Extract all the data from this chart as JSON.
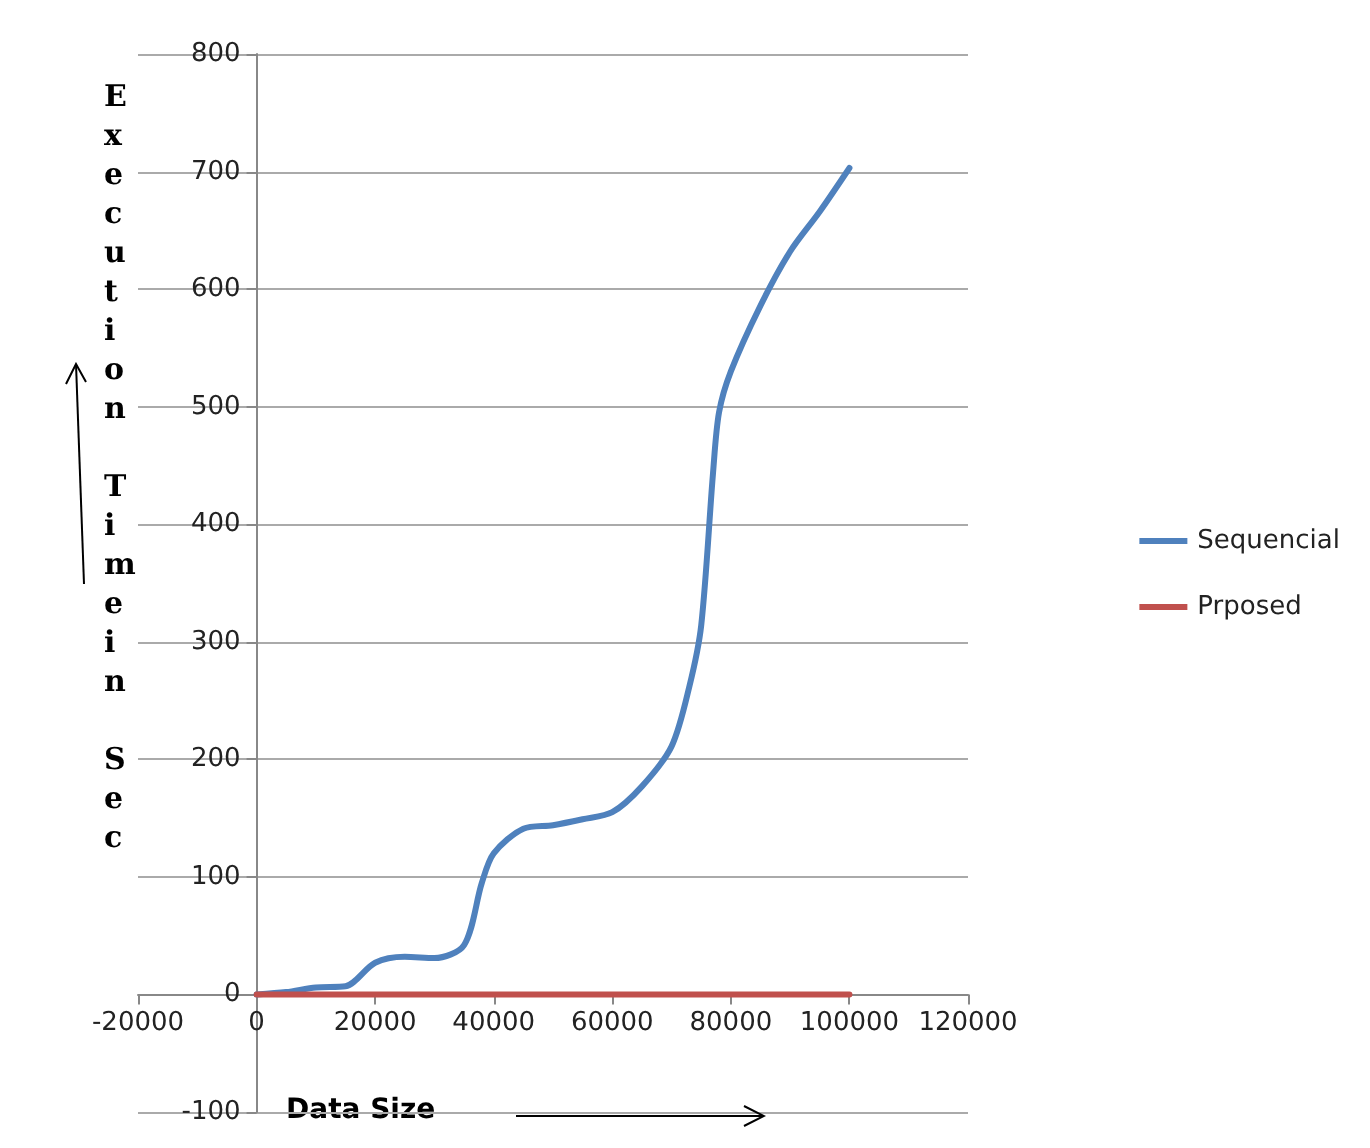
{
  "chart_data": {
    "type": "line",
    "xlabel": "Data Size",
    "ylabel": "Execution Timein Sec",
    "xlim": [
      -20000,
      120000
    ],
    "xticks": [
      -20000,
      0,
      20000,
      40000,
      60000,
      80000,
      100000,
      120000
    ],
    "ylim": [
      -100,
      800
    ],
    "yticks": [
      -100,
      0,
      100,
      200,
      300,
      400,
      500,
      600,
      700,
      800
    ],
    "grid": "y",
    "legend": "right",
    "marker": "none",
    "line_style": "solid",
    "series": [
      {
        "name": "Sequencial",
        "color": "#4f81bd",
        "x": [
          0,
          5000,
          10000,
          15000,
          20000,
          25000,
          30000,
          35000,
          38000,
          40000,
          45000,
          50000,
          55000,
          60000,
          65000,
          70000,
          73000,
          75000,
          77000,
          78000,
          80000,
          85000,
          90000,
          95000,
          100000
        ],
        "values": [
          0,
          2,
          6,
          7,
          27,
          32,
          31,
          42,
          95,
          120,
          141,
          144,
          149,
          155,
          177,
          211,
          262,
          314,
          444,
          495,
          530,
          586,
          632,
          666,
          703
        ]
      },
      {
        "name": "Prposed",
        "color": "#c0504d",
        "x": [
          0,
          20000,
          40000,
          60000,
          80000,
          100000
        ],
        "values": [
          0,
          0,
          0,
          0,
          0,
          0
        ]
      }
    ]
  }
}
